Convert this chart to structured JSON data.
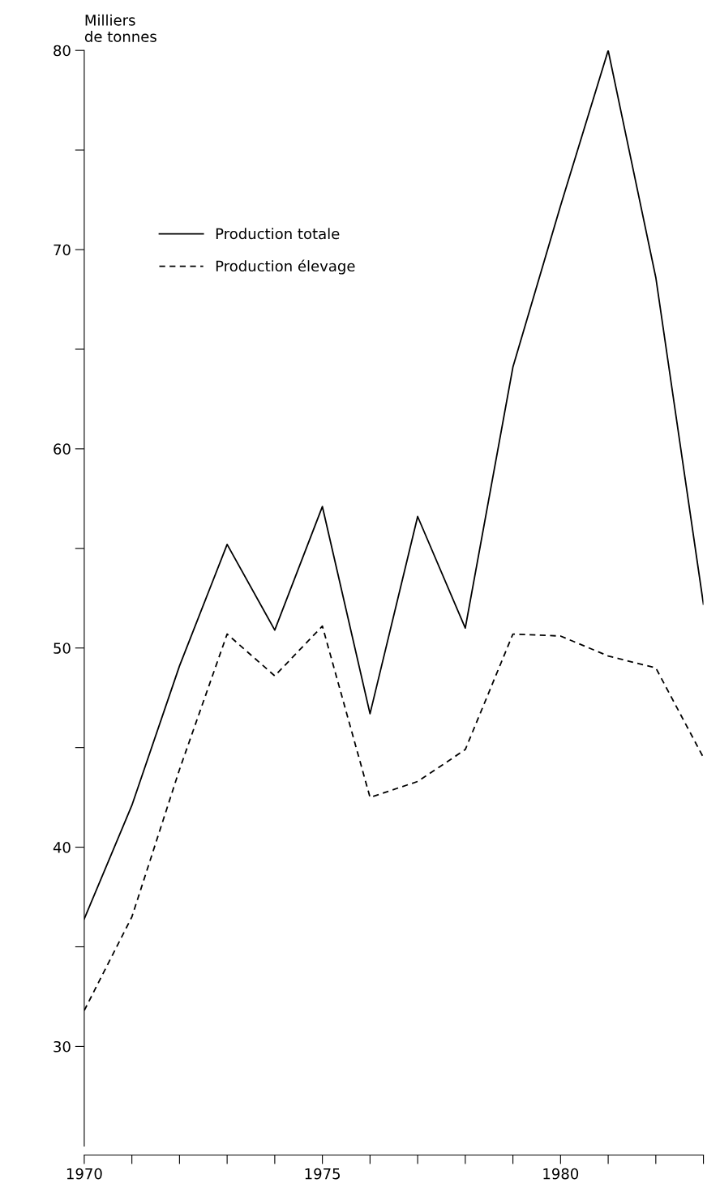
{
  "chart_data": {
    "type": "line",
    "ylabel": "Milliers\nde tonnes",
    "x": [
      1970,
      1971,
      1972,
      1973,
      1974,
      1975,
      1976,
      1977,
      1978,
      1979,
      1980,
      1981,
      1982,
      1983
    ],
    "series": [
      {
        "name": "Production totale",
        "color": "#000000",
        "line_style": "solid",
        "values": [
          36.4,
          42.1,
          49.1,
          55.2,
          50.9,
          57.1,
          46.7,
          56.6,
          51.0,
          64.1,
          72.2,
          80.0,
          68.6,
          52.2
        ]
      },
      {
        "name": "Production élevage",
        "color": "#000000",
        "line_style": "dashed",
        "values": [
          31.8,
          36.5,
          43.9,
          50.7,
          48.6,
          51.1,
          42.5,
          43.3,
          44.9,
          50.7,
          50.6,
          49.6,
          49.0,
          44.5
        ]
      }
    ],
    "xlim": [
      1970,
      1983
    ],
    "xticks": [
      1970,
      {
        "value": 1971,
        "label": null
      },
      {
        "value": 1972,
        "label": null
      },
      {
        "value": 1973,
        "label": null
      },
      {
        "value": 1974,
        "label": null
      },
      1975,
      {
        "value": 1976,
        "label": null
      },
      {
        "value": 1977,
        "label": null
      },
      {
        "value": 1978,
        "label": null
      },
      {
        "value": 1979,
        "label": null
      },
      1980,
      {
        "value": 1981,
        "label": null
      },
      {
        "value": 1982,
        "label": null
      },
      {
        "value": 1983,
        "label": null
      }
    ],
    "ylim": [
      25,
      80
    ],
    "yticks": [
      30,
      {
        "value": 35,
        "label": null
      },
      40,
      {
        "value": 45,
        "label": null
      },
      50,
      {
        "value": 55,
        "label": null
      },
      60,
      {
        "value": 65,
        "label": null
      },
      70,
      {
        "value": 75,
        "label": null
      },
      80
    ],
    "grid": false,
    "legend": "top left",
    "marker": "none"
  }
}
